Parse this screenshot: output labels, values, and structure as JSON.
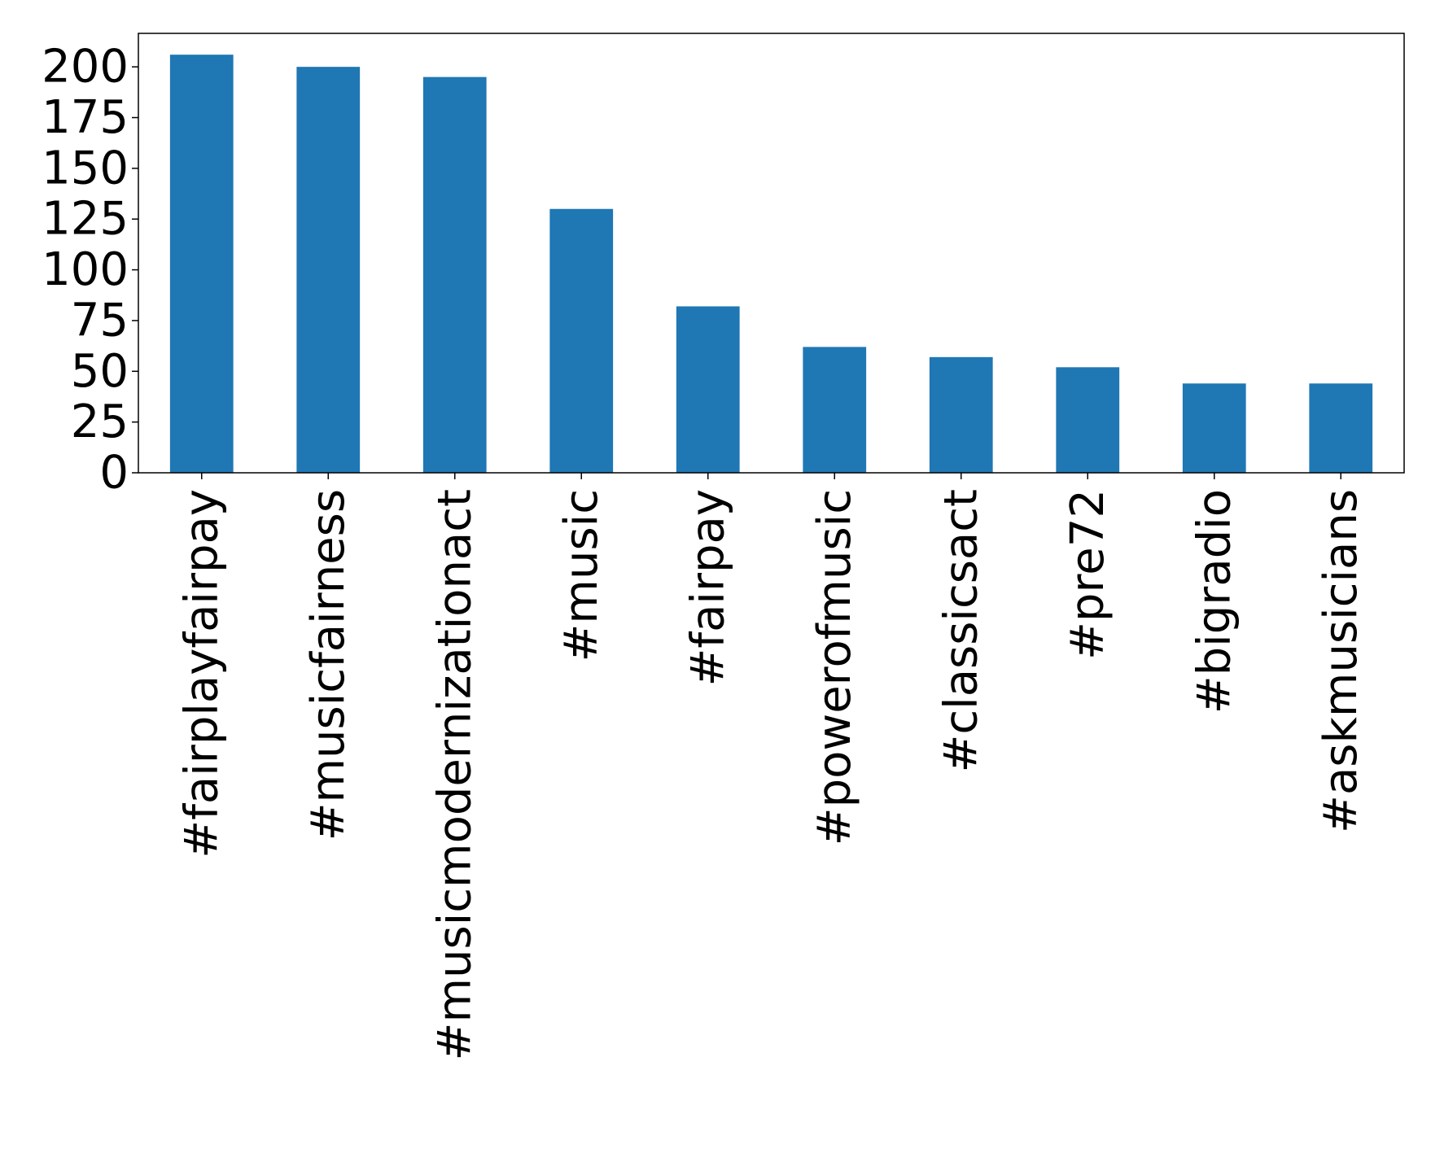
{
  "chart_data": {
    "type": "bar",
    "title": "",
    "xlabel": "",
    "ylabel": "",
    "categories": [
      "#fairplayfairpay",
      "#musicfairness",
      "#musicmodernizationact",
      "#music",
      "#fairpay",
      "#powerofmusic",
      "#classicsact",
      "#pre72",
      "#bigradio",
      "#askmusicians"
    ],
    "values": [
      206,
      200,
      195,
      130,
      82,
      62,
      57,
      52,
      44,
      44
    ],
    "ylim": [
      0,
      216.5
    ],
    "yticks": [
      0,
      25,
      50,
      75,
      100,
      125,
      150,
      175,
      200
    ],
    "ytick_labels": [
      "0",
      "25",
      "50",
      "75",
      "100",
      "125",
      "150",
      "175",
      "200"
    ],
    "grid": false,
    "bar_color": "#1f77b4"
  }
}
